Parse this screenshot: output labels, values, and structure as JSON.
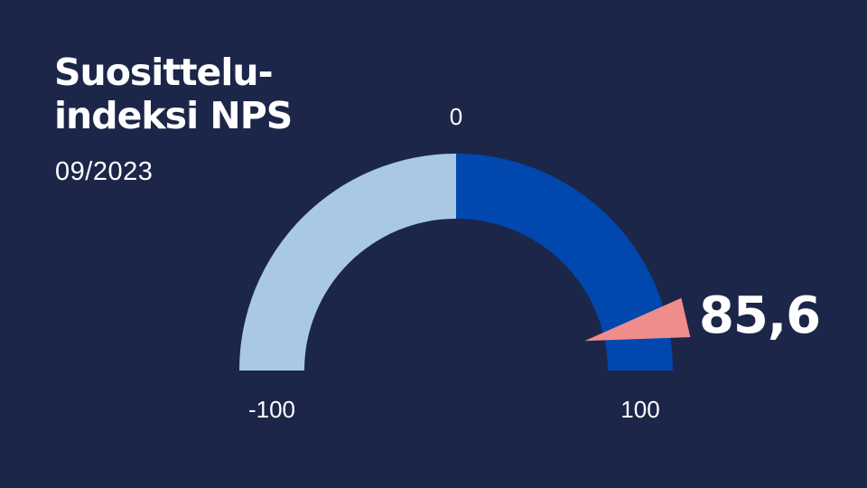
{
  "title_lines": [
    "Suosittelu-",
    "indeksi NPS"
  ],
  "subtitle": "09/2023",
  "chart_data": {
    "type": "gauge",
    "min": -100,
    "max": 100,
    "value": 85.6,
    "value_label": "85,6",
    "tick_labels": {
      "min": "-100",
      "mid": "0",
      "max": "100"
    },
    "colors": {
      "negative_half": "#a9c8e3",
      "positive_half": "#0048ae",
      "needle": "#ef8c8c",
      "background": "#1c2649"
    }
  }
}
